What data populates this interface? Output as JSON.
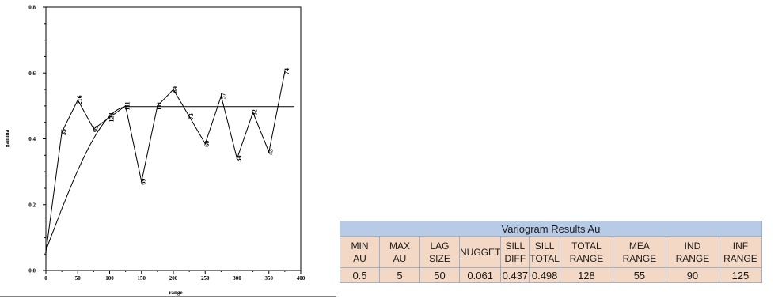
{
  "chart_data": {
    "type": "line",
    "title": "",
    "xlabel": "range",
    "ylabel": "gamma",
    "xlim": [
      0,
      400
    ],
    "ylim": [
      0,
      0.8
    ],
    "x_ticks": [
      0,
      50,
      100,
      150,
      200,
      250,
      300,
      350,
      400
    ],
    "y_ticks": [
      0.0,
      0.2,
      0.4,
      0.6,
      0.8
    ],
    "y_tick_labels": [
      "0.0",
      "0.2",
      "0.4",
      "0.6",
      "0.8"
    ],
    "grid": false,
    "series": [
      {
        "points": [
          {
            "x": 0,
            "y": 0.055,
            "label": ""
          },
          {
            "x": 25,
            "y": 0.42,
            "label": "35"
          },
          {
            "x": 50,
            "y": 0.518,
            "label": "216"
          },
          {
            "x": 75,
            "y": 0.43,
            "label": "95"
          },
          {
            "x": 100,
            "y": 0.465,
            "label": "124"
          },
          {
            "x": 125,
            "y": 0.5,
            "label": "111"
          },
          {
            "x": 150,
            "y": 0.27,
            "label": "69"
          },
          {
            "x": 175,
            "y": 0.5,
            "label": "111"
          },
          {
            "x": 200,
            "y": 0.55,
            "label": "69"
          },
          {
            "x": 225,
            "y": 0.468,
            "label": "73"
          },
          {
            "x": 250,
            "y": 0.385,
            "label": "60"
          },
          {
            "x": 275,
            "y": 0.53,
            "label": "57"
          },
          {
            "x": 300,
            "y": 0.34,
            "label": "34"
          },
          {
            "x": 325,
            "y": 0.48,
            "label": "82"
          },
          {
            "x": 350,
            "y": 0.36,
            "label": "43"
          },
          {
            "x": 375,
            "y": 0.605,
            "label": "74"
          }
        ]
      },
      {
        "model": "spherical",
        "nugget": 0.061,
        "sill": 0.498,
        "range": 128
      }
    ]
  },
  "table": {
    "title": "Variogram Results Au",
    "headers": [
      "MIN\nAU",
      "MAX\nAU",
      "LAG\nSIZE",
      "NUGGET",
      "SILL\nDIFF",
      "SILL\nTOTAL",
      "TOTAL\nRANGE",
      "MEA\nRANGE",
      "IND\nRANGE",
      "INF\nRANGE"
    ],
    "values": [
      "0.5",
      "5",
      "50",
      "0.061",
      "0.437",
      "0.498",
      "128",
      "55",
      "90",
      "125"
    ]
  }
}
